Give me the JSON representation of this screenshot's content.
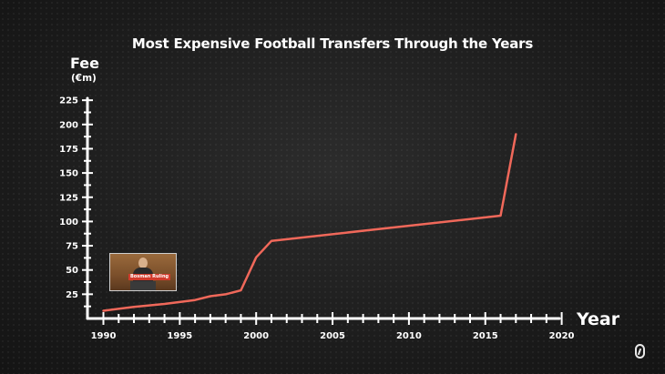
{
  "chart_data": {
    "type": "line",
    "title": "Most Expensive Football Transfers Through the Years",
    "ylabel": "Fee",
    "yunit": "(€m)",
    "xlabel": "Year",
    "xlim": [
      1990,
      2020
    ],
    "ylim": [
      0,
      230
    ],
    "xticks": [
      1990,
      1995,
      2000,
      2005,
      2010,
      2015,
      2020
    ],
    "yticks": [
      25,
      50,
      75,
      100,
      125,
      150,
      175,
      200,
      225
    ],
    "grid": false,
    "series": [
      {
        "color": "#f0685a",
        "points": [
          [
            1990,
            8
          ],
          [
            1992,
            12
          ],
          [
            1994,
            15
          ],
          [
            1996,
            19
          ],
          [
            1997,
            23
          ],
          [
            1998,
            25
          ],
          [
            1999,
            29
          ],
          [
            2000,
            63
          ],
          [
            2001,
            80
          ],
          [
            2016,
            106
          ],
          [
            2017,
            190
          ]
        ]
      }
    ],
    "inset_caption": "Bosman Ruling"
  }
}
